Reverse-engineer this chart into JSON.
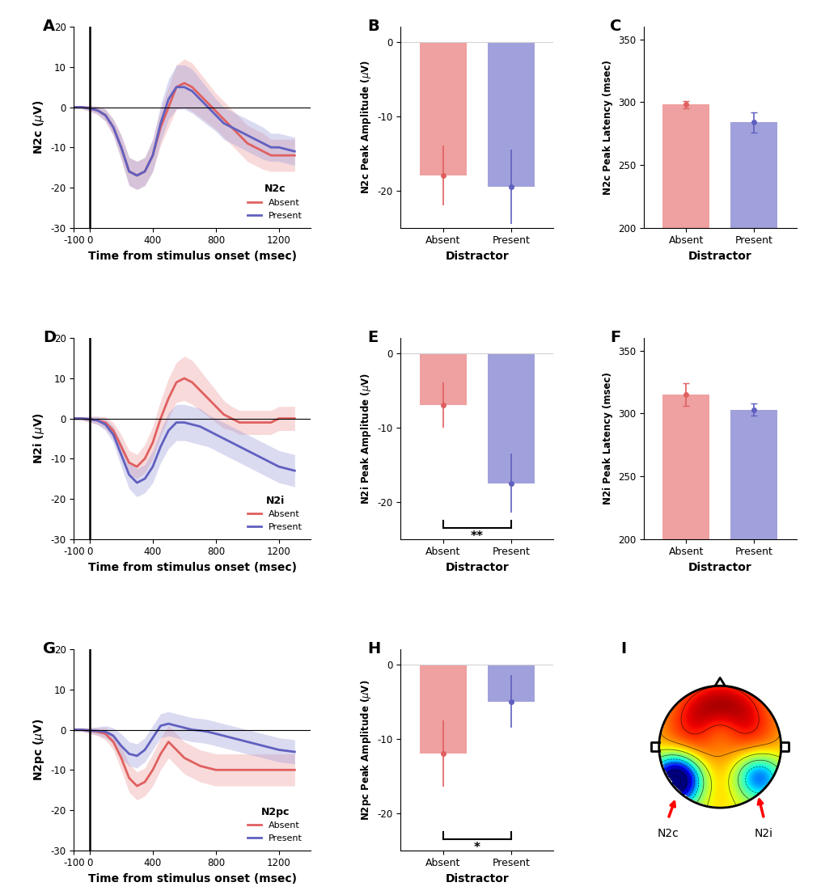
{
  "fig_width": 10.15,
  "fig_height": 11.07,
  "dpi": 100,
  "bg_color": "#ffffff",
  "time_xlim": [
    -100,
    1400
  ],
  "time_xticks": [
    -100,
    0,
    400,
    800,
    1200
  ],
  "time_xlabel": "Time from stimulus onset (msec)",
  "time_ylim": [
    -30,
    20
  ],
  "time_yticks": [
    -30,
    -20,
    -10,
    0,
    10,
    20
  ],
  "absent_color": "#E06060",
  "present_color": "#6060C0",
  "absent_fill": "#EFA0A0",
  "present_fill": "#A0A0DC",
  "n2c_absent_mean": [
    0,
    0,
    -0.3,
    -0.8,
    -2,
    -5,
    -10,
    -16,
    -17,
    -16,
    -12,
    -5,
    0,
    5,
    6,
    5,
    3,
    1,
    -1,
    -3,
    -5,
    -7,
    -9,
    -10,
    -11,
    -12,
    -12,
    -12
  ],
  "n2c_absent_se": [
    0.4,
    0.4,
    0.7,
    1,
    1.5,
    2,
    3,
    3.5,
    3.5,
    3.5,
    4,
    4.5,
    5,
    5.5,
    6,
    6,
    5.5,
    5,
    4.5,
    4.5,
    4.5,
    4.5,
    4.5,
    4.5,
    4.5,
    4,
    4,
    4
  ],
  "n2c_present_mean": [
    0,
    0,
    -0.3,
    -0.8,
    -2,
    -5,
    -10,
    -16,
    -17,
    -16,
    -12,
    -4,
    2,
    5,
    5,
    4,
    2,
    0,
    -2,
    -4,
    -5,
    -6,
    -7,
    -8,
    -9,
    -10,
    -10,
    -11
  ],
  "n2c_present_se": [
    0.4,
    0.4,
    0.7,
    1,
    1.5,
    2,
    3,
    3.5,
    3.5,
    3.5,
    4,
    4.5,
    5,
    5.5,
    5.5,
    5.5,
    5,
    4.5,
    4,
    4,
    4,
    4,
    4,
    4,
    4,
    3.5,
    3.5,
    3.5
  ],
  "n2i_absent_mean": [
    0,
    0,
    -0.2,
    -0.5,
    -1,
    -3,
    -7,
    -11,
    -12,
    -10,
    -6,
    0,
    5,
    9,
    10,
    9,
    7,
    5,
    3,
    1,
    0,
    -1,
    -1,
    -1,
    -1,
    -1,
    0,
    0
  ],
  "n2i_absent_se": [
    0.4,
    0.4,
    0.7,
    1,
    1.5,
    2,
    3,
    3,
    3,
    3.5,
    4,
    4.5,
    5,
    5,
    5.5,
    5.5,
    5,
    4.5,
    4,
    3.5,
    3,
    3,
    3,
    3,
    3,
    3,
    3,
    3
  ],
  "n2i_present_mean": [
    0,
    0,
    -0.2,
    -0.5,
    -1.5,
    -4,
    -9,
    -14,
    -16,
    -15,
    -12,
    -7,
    -3,
    -1,
    -1,
    -1.5,
    -2,
    -3,
    -4,
    -5,
    -6,
    -7,
    -8,
    -9,
    -10,
    -11,
    -12,
    -13
  ],
  "n2i_present_se": [
    0.4,
    0.4,
    0.7,
    1,
    1.5,
    2,
    3,
    3.5,
    3.5,
    3.5,
    4,
    4,
    4.5,
    4.5,
    4.5,
    4.5,
    4.5,
    4,
    4,
    4,
    4,
    4,
    4,
    4,
    4,
    4,
    4,
    4
  ],
  "n2pc_absent_mean": [
    0,
    0,
    -0.2,
    -0.5,
    -1,
    -3,
    -7,
    -12,
    -14,
    -13,
    -10,
    -6,
    -3,
    -5,
    -7,
    -8,
    -9,
    -9.5,
    -10,
    -10,
    -10,
    -10,
    -10,
    -10,
    -10,
    -10,
    -10,
    -10
  ],
  "n2pc_absent_se": [
    0.4,
    0.4,
    0.7,
    1,
    1.5,
    2,
    3,
    3.5,
    3.5,
    3.5,
    4,
    4,
    4,
    4,
    4,
    4,
    4,
    4,
    4,
    4,
    4,
    4,
    4,
    4,
    4,
    4,
    4,
    4
  ],
  "n2pc_present_mean": [
    0,
    0,
    -0.2,
    -0.3,
    -0.5,
    -1.5,
    -4,
    -6,
    -6.5,
    -5,
    -2,
    1,
    1.5,
    1,
    0.5,
    0,
    -0.2,
    -0.5,
    -1,
    -1.5,
    -2,
    -2.5,
    -3,
    -3.5,
    -4,
    -4.5,
    -5,
    -5.5
  ],
  "n2pc_present_se": [
    0.4,
    0.4,
    0.7,
    1,
    1.5,
    2,
    3,
    3,
    3,
    3,
    3,
    3,
    3,
    3,
    3,
    3,
    3,
    3,
    3,
    3,
    3,
    3,
    3,
    3,
    3,
    3,
    3,
    3
  ],
  "time_points": [
    -100,
    -50,
    0,
    50,
    100,
    150,
    200,
    250,
    300,
    350,
    400,
    450,
    500,
    550,
    600,
    650,
    700,
    750,
    800,
    850,
    900,
    950,
    1000,
    1050,
    1100,
    1150,
    1200,
    1300
  ],
  "n2c_bar_absent_mean": -18.0,
  "n2c_bar_absent_se": 4.0,
  "n2c_bar_present_mean": -19.5,
  "n2c_bar_present_se": 5.0,
  "n2c_lat_absent_mean": 298,
  "n2c_lat_absent_se": 3,
  "n2c_lat_present_mean": 284,
  "n2c_lat_present_se": 8,
  "n2i_bar_absent_mean": -7.0,
  "n2i_bar_absent_se": 3.0,
  "n2i_bar_present_mean": -17.5,
  "n2i_bar_present_se": 4.0,
  "n2i_lat_absent_mean": 315,
  "n2i_lat_absent_se": 9,
  "n2i_lat_present_mean": 303,
  "n2i_lat_present_se": 5,
  "n2pc_bar_absent_mean": -12.0,
  "n2pc_bar_absent_se": 4.5,
  "n2pc_bar_present_mean": -5.0,
  "n2pc_bar_present_se": 3.5,
  "bar_ylim_amp": [
    -25,
    2
  ],
  "bar_yticks_amp": [
    -20,
    -10,
    0
  ],
  "lat_ylim": [
    200,
    360
  ],
  "lat_yticks": [
    200,
    250,
    300,
    350
  ],
  "sig_stars_E": "**",
  "sig_stars_H": "*"
}
